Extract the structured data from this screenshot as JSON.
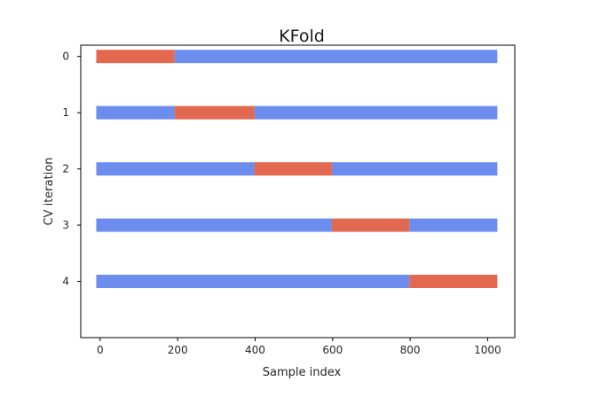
{
  "chart_data": {
    "type": "bar",
    "title": "KFold",
    "xlabel": "Sample index",
    "ylabel": "CV iteration",
    "xlim": [
      -50,
      1070
    ],
    "ylim": [
      5.0,
      -0.2
    ],
    "xticks": [
      0,
      200,
      400,
      600,
      800,
      1000
    ],
    "yticks": [
      0,
      1,
      2,
      3,
      4
    ],
    "grid": false,
    "n_samples": 1030,
    "colors": {
      "train": "#6c8ded",
      "test": "#e2684f"
    },
    "iterations": [
      {
        "iteration": 0,
        "test_range": [
          -10,
          192
        ],
        "train_ranges": [
          [
            192,
            1025
          ]
        ]
      },
      {
        "iteration": 1,
        "test_range": [
          192,
          398
        ],
        "train_ranges": [
          [
            -10,
            192
          ],
          [
            398,
            1025
          ]
        ]
      },
      {
        "iteration": 2,
        "test_range": [
          398,
          598
        ],
        "train_ranges": [
          [
            -10,
            398
          ],
          [
            598,
            1025
          ]
        ]
      },
      {
        "iteration": 3,
        "test_range": [
          598,
          798
        ],
        "train_ranges": [
          [
            -10,
            598
          ],
          [
            798,
            1025
          ]
        ]
      },
      {
        "iteration": 4,
        "test_range": [
          798,
          1025
        ],
        "train_ranges": [
          [
            -10,
            798
          ]
        ]
      }
    ]
  }
}
